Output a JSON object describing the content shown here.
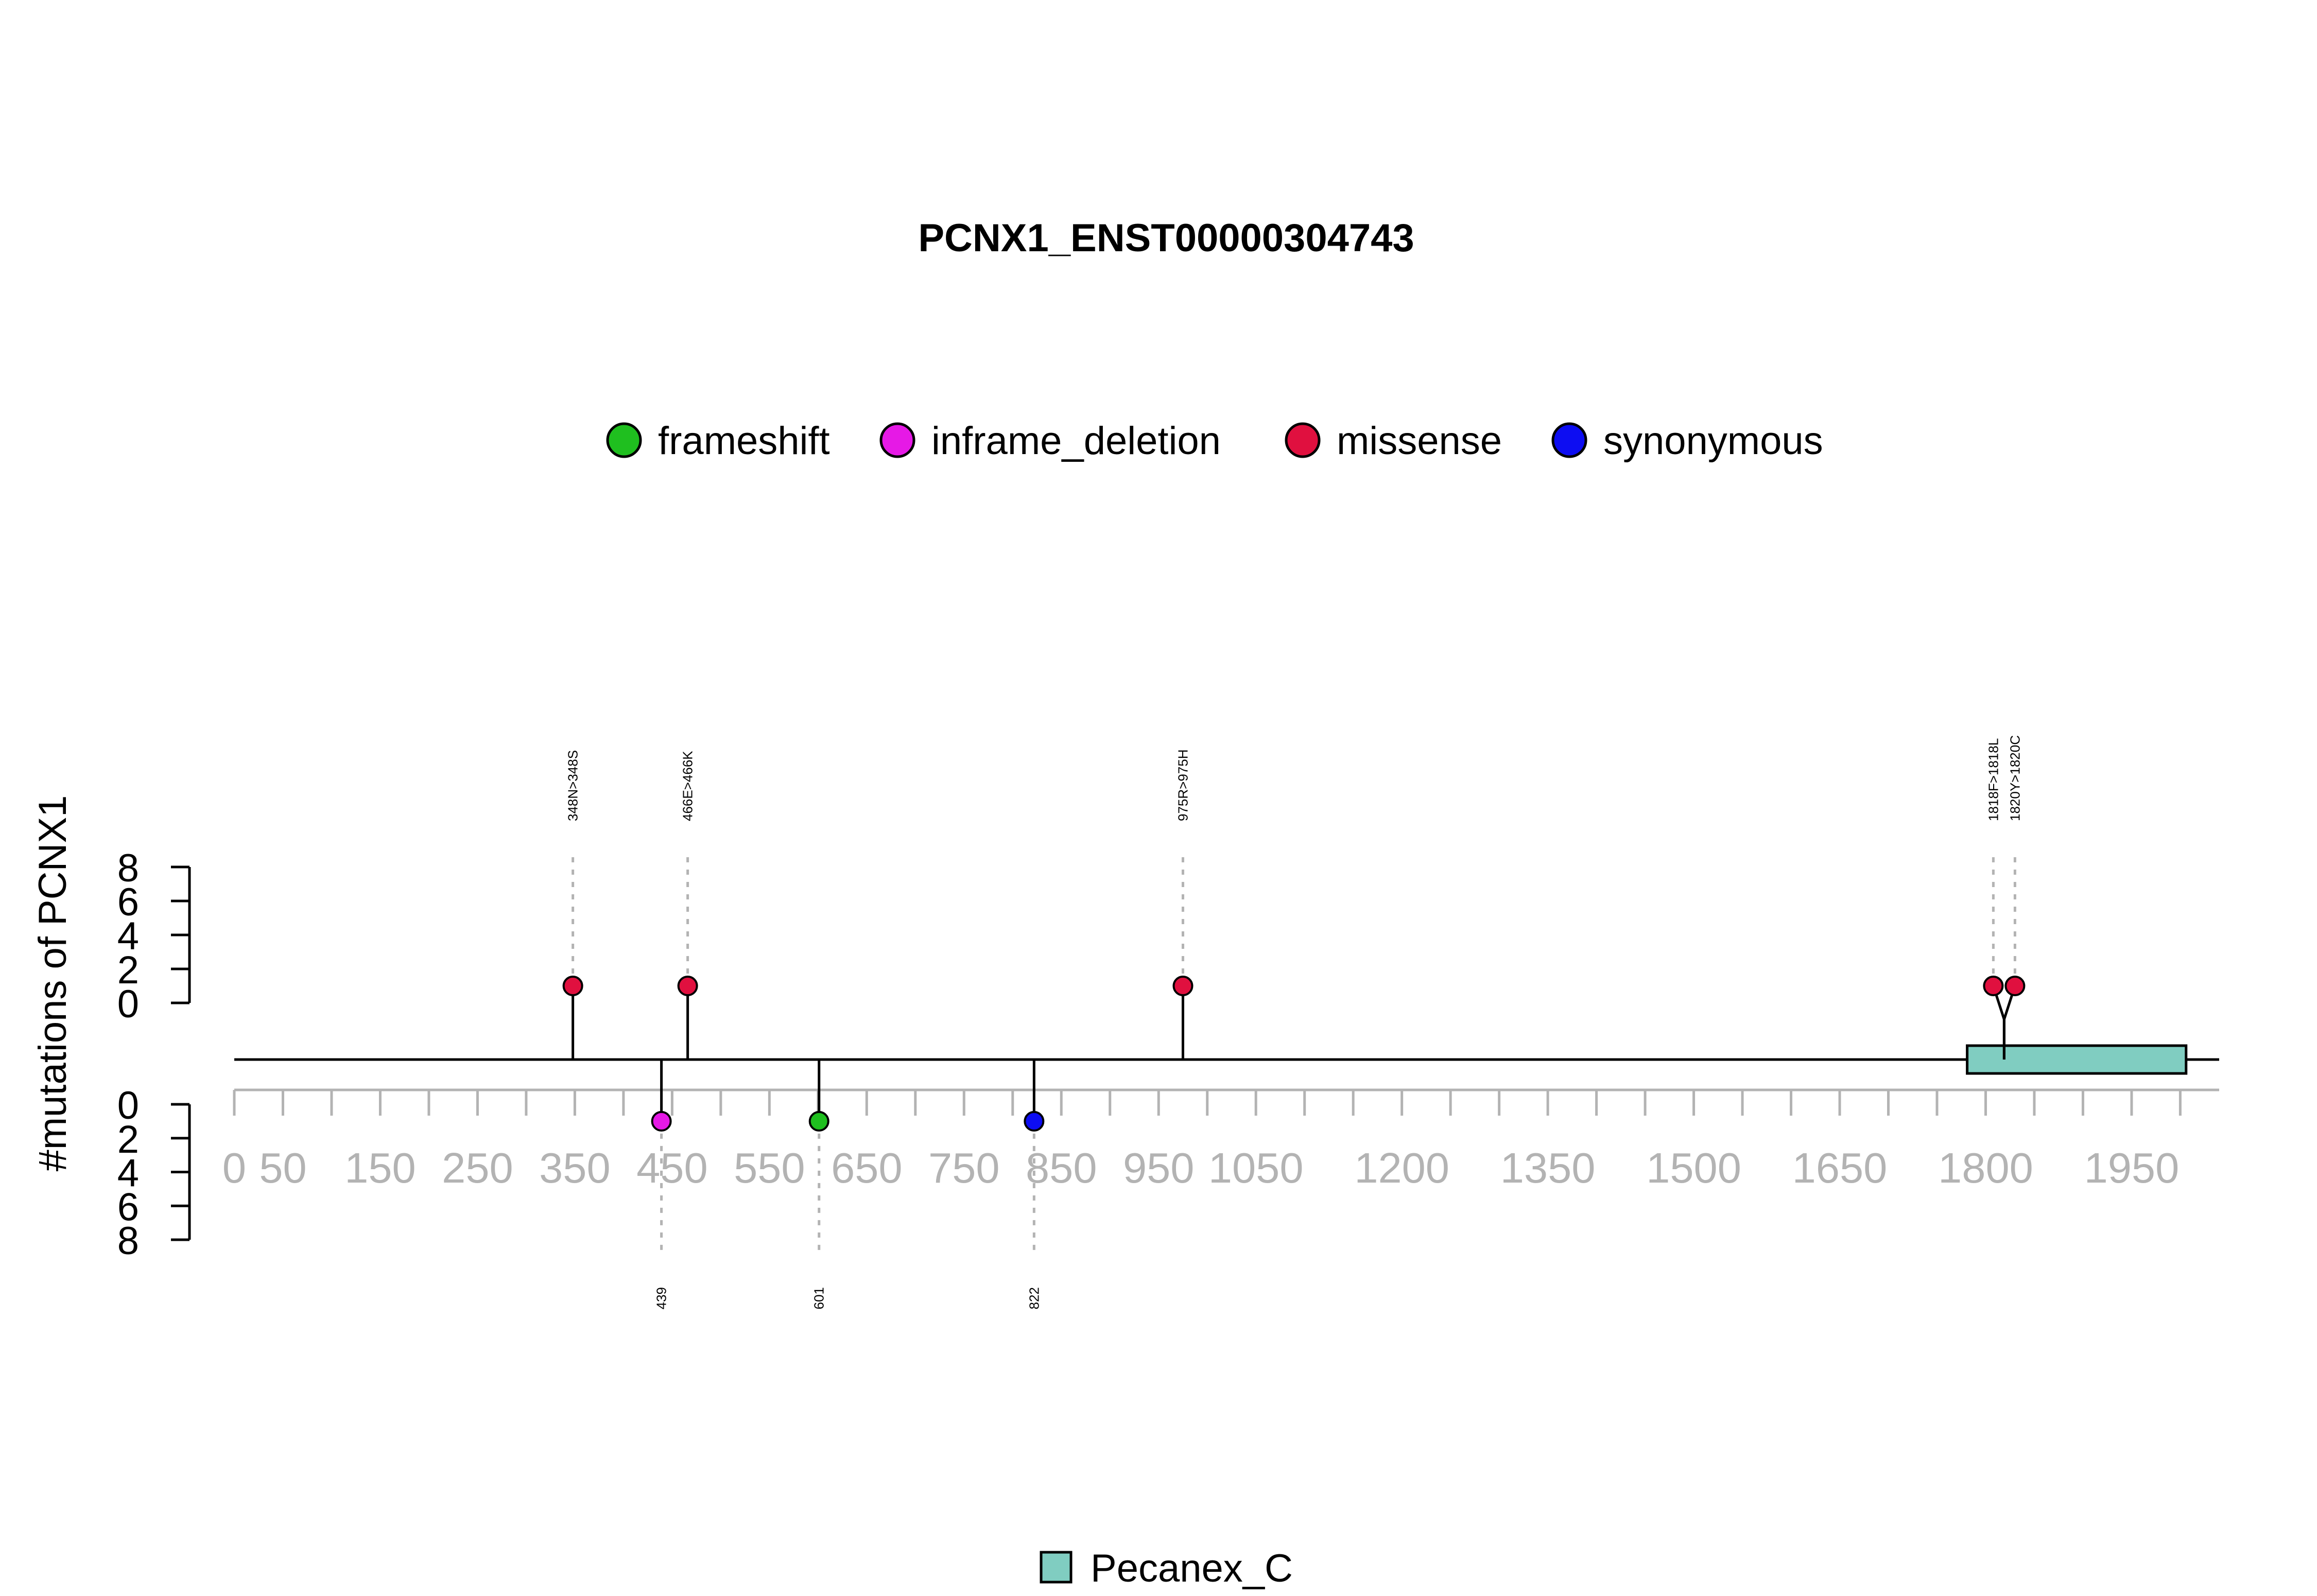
{
  "chart_data": {
    "type": "lollipop",
    "title": "PCNX1_ENST00000304743",
    "ylabel": "#mutations of PCNX1",
    "xlim": [
      0,
      2040
    ],
    "ylim_top": [
      0,
      8
    ],
    "ylim_bottom": [
      0,
      8
    ],
    "y_ticks": [
      "0",
      "2",
      "4",
      "6",
      "8"
    ],
    "x_tick_labels": [
      {
        "value": 0,
        "label": "0"
      },
      {
        "value": 50,
        "label": "50"
      },
      {
        "value": 150,
        "label": "150"
      },
      {
        "value": 250,
        "label": "250"
      },
      {
        "value": 350,
        "label": "350"
      },
      {
        "value": 450,
        "label": "450"
      },
      {
        "value": 550,
        "label": "550"
      },
      {
        "value": 650,
        "label": "650"
      },
      {
        "value": 750,
        "label": "750"
      },
      {
        "value": 850,
        "label": "850"
      },
      {
        "value": 950,
        "label": "950"
      },
      {
        "value": 1050,
        "label": "1050"
      },
      {
        "value": 1200,
        "label": "1200"
      },
      {
        "value": 1350,
        "label": "1350"
      },
      {
        "value": 1500,
        "label": "1500"
      },
      {
        "value": 1650,
        "label": "1650"
      },
      {
        "value": 1800,
        "label": "1800"
      },
      {
        "value": 1950,
        "label": "1950"
      }
    ],
    "legend": [
      {
        "name": "frameshift",
        "color": "#1fbf1f"
      },
      {
        "name": "inframe_deletion",
        "color": "#e619e6"
      },
      {
        "name": "missense",
        "color": "#e0103f"
      },
      {
        "name": "synonymous",
        "color": "#0d0df2"
      }
    ],
    "mutations_top": [
      {
        "position": 348,
        "count": 1,
        "type": "missense",
        "label": "348N>348S"
      },
      {
        "position": 466,
        "count": 1,
        "type": "missense",
        "label": "466E>466K"
      },
      {
        "position": 975,
        "count": 1,
        "type": "missense",
        "label": "975R>975H"
      },
      {
        "position": 1818,
        "count": 1,
        "type": "missense",
        "label": "1818F>1818L"
      },
      {
        "position": 1820,
        "count": 1,
        "type": "missense",
        "label": "1820Y>1820C"
      }
    ],
    "mutations_bottom": [
      {
        "position": 439,
        "count": 1,
        "type": "inframe_deletion",
        "label": "439"
      },
      {
        "position": 601,
        "count": 1,
        "type": "frameshift",
        "label": "601"
      },
      {
        "position": 822,
        "count": 1,
        "type": "synonymous",
        "label": "822"
      }
    ],
    "domains": [
      {
        "name": "Pecanex_C",
        "start": 1781,
        "end": 2006,
        "color": "#80cdc1"
      }
    ]
  }
}
